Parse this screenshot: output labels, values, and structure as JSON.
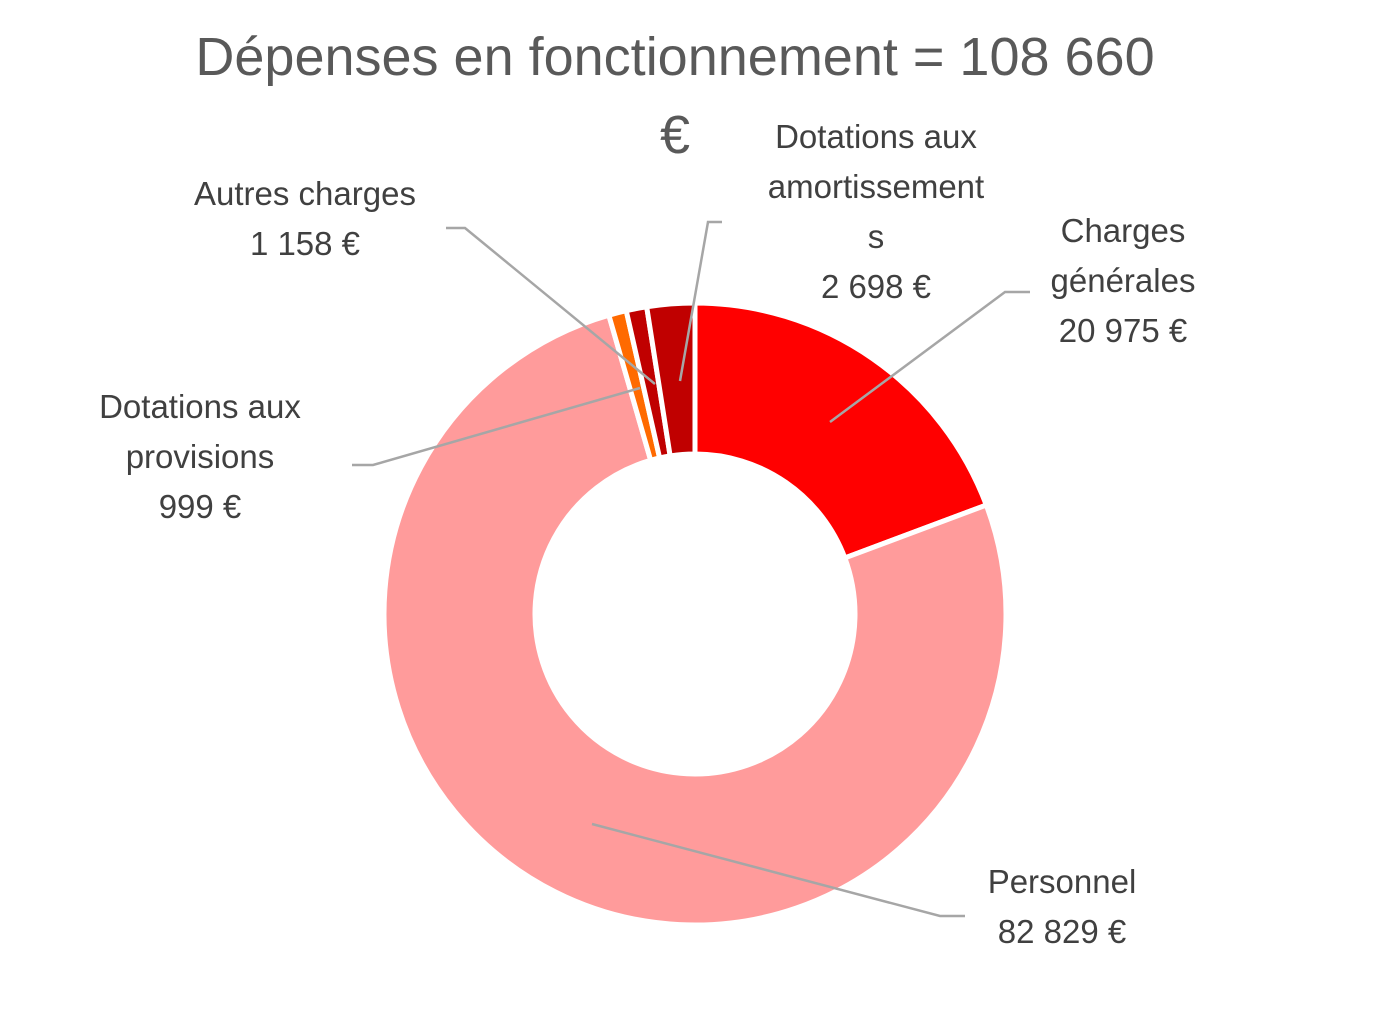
{
  "chart_data": {
    "type": "pie",
    "subtype": "donut",
    "title_lines": [
      "Dépenses en fonctionnement = 108 660",
      "€"
    ],
    "legend": "none",
    "slices": [
      {
        "id": "charges-generales",
        "label_lines": [
          "Charges",
          "générales"
        ],
        "value": 20975,
        "value_label": "20 975 €",
        "color": "#ff0000"
      },
      {
        "id": "personnel",
        "label_lines": [
          "Personnel"
        ],
        "value": 82829,
        "value_label": "82 829 €",
        "color": "#ff9b9b"
      },
      {
        "id": "dotations-provisions",
        "label_lines": [
          "Dotations aux",
          "provisions"
        ],
        "value": 999,
        "value_label": "999 €",
        "color": "#ff6a00"
      },
      {
        "id": "autres-charges",
        "label_lines": [
          "Autres charges"
        ],
        "value": 1158,
        "value_label": "1 158 €",
        "color": "#c00000"
      },
      {
        "id": "dotations-amortissements",
        "label_lines": [
          "Dotations aux",
          "amortissement",
          "s"
        ],
        "value": 2698,
        "value_label": "2 698 €",
        "color": "#c00000"
      }
    ]
  }
}
